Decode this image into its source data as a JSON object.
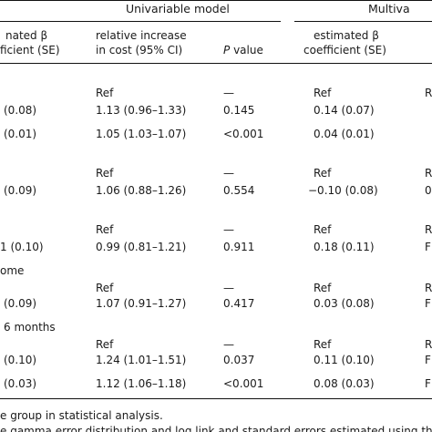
{
  "header": {
    "group_left": "Univariable model",
    "group_right": "Multiva",
    "col_beta_line1": "nated β",
    "col_beta_line2": "ficient (SE)",
    "col_rel_line1": "relative increase",
    "col_rel_line2": "in cost (95% CI)",
    "col_p_italic": "P",
    "col_p_rest": " value",
    "col_mbeta_line1": "estimated β",
    "col_mbeta_line2": "coefficient (SE)"
  },
  "sections": [
    {
      "label": "",
      "rows": [
        {
          "beta": "",
          "rel": "Ref",
          "p": "—",
          "mbeta": "Ref",
          "edge": "R"
        },
        {
          "beta": "(0.08)",
          "rel": "1.13 (0.96–1.33)",
          "p": "0.145",
          "mbeta": "0.14 (0.07)",
          "edge": ""
        },
        {
          "beta": "(0.01)",
          "rel": "1.05 (1.03–1.07)",
          "p": "<0.001",
          "mbeta": "0.04 (0.01)",
          "edge": ""
        }
      ]
    },
    {
      "label": "",
      "rows": [
        {
          "beta": "",
          "rel": "Ref",
          "p": "—",
          "mbeta": "Ref",
          "edge": "R"
        },
        {
          "beta": "(0.09)",
          "rel": "1.06 (0.88–1.26)",
          "p": "0.554",
          "mbeta": "−0.10 (0.08)",
          "edge": "0"
        }
      ]
    },
    {
      "label": "",
      "rows": [
        {
          "beta": "",
          "rel": "Ref",
          "p": "—",
          "mbeta": "Ref",
          "edge": "R"
        },
        {
          "beta": "1 (0.10)",
          "rel": "0.99 (0.81–1.21)",
          "p": "0.911",
          "mbeta": "0.18 (0.11)",
          "edge": "F"
        }
      ]
    },
    {
      "label": "ome",
      "rows": [
        {
          "beta": "",
          "rel": "Ref",
          "p": "—",
          "mbeta": "Ref",
          "edge": "R"
        },
        {
          "beta": "(0.09)",
          "rel": "1.07 (0.91–1.27)",
          "p": "0.417",
          "mbeta": "0.03 (0.08)",
          "edge": "F"
        }
      ]
    },
    {
      "label": "6 months",
      "rows": [
        {
          "beta": "",
          "rel": "Ref",
          "p": "—",
          "mbeta": "Ref",
          "edge": "R"
        },
        {
          "beta": "(0.10)",
          "rel": "1.24 (1.01–1.51)",
          "p": "0.037",
          "mbeta": "0.11 (0.10)",
          "edge": "F"
        },
        {
          "beta": "(0.03)",
          "rel": "1.12 (1.06–1.18)",
          "p": "<0.001",
          "mbeta": "0.08 (0.03)",
          "edge": "F"
        }
      ]
    }
  ],
  "footnotes": {
    "line1": "e group in statistical analysis.",
    "line2": "e gamma error distribution and log link and standard errors estimated using the Hube"
  }
}
